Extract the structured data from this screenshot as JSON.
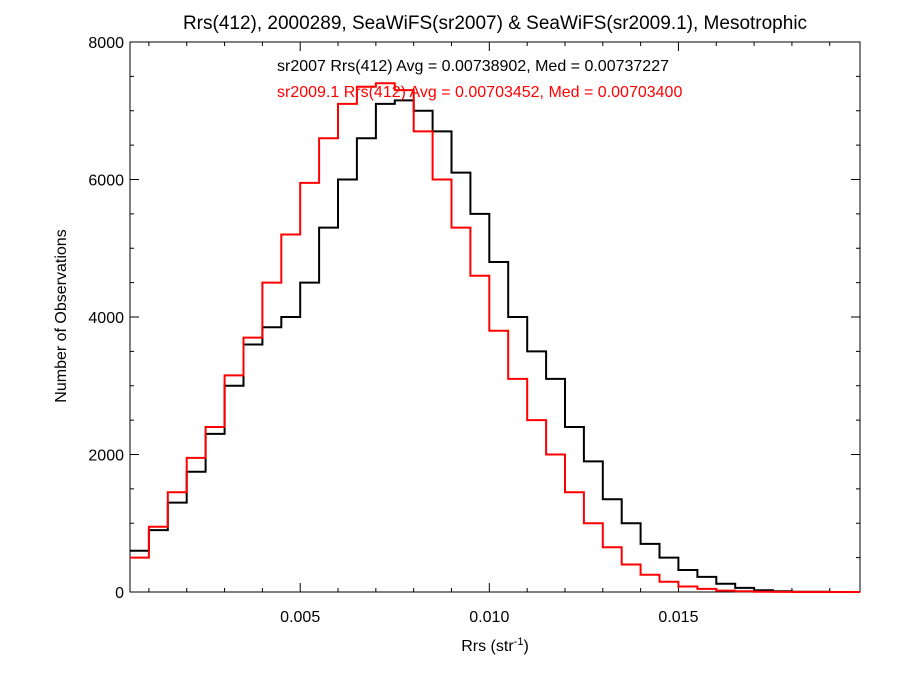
{
  "chart_data": {
    "type": "line",
    "title": "Rrs(412), 2000289, SeaWiFS(sr2007) & SeaWiFS(sr2009.1), Mesotrophic",
    "xlabel_main": "Rrs (str",
    "xlabel_sup": "-1",
    "xlabel_close": ")",
    "ylabel": "Number of Observations",
    "xlim": [
      0.0005,
      0.0198
    ],
    "ylim": [
      0,
      8000
    ],
    "x_ticks": [
      0.005,
      0.01,
      0.015
    ],
    "x_tick_labels": [
      "0.005",
      "0.010",
      "0.015"
    ],
    "y_ticks": [
      0,
      2000,
      4000,
      6000,
      8000
    ],
    "y_tick_labels": [
      "0",
      "2000",
      "4000",
      "6000",
      "8000"
    ],
    "annotations": [
      "sr2007 Rrs(412) Avg = 0.00738902, Med = 0.00737227",
      "sr2009.1 Rrs(412) Avg = 0.00703452, Med = 0.00703400"
    ],
    "colors": {
      "series_sr2007": "#000000",
      "series_sr2009": "#ff0000"
    },
    "series": [
      {
        "name": "sr2007",
        "color": "#000000",
        "x": [
          0.0005,
          0.001,
          0.0015,
          0.002,
          0.0025,
          0.003,
          0.0035,
          0.004,
          0.0045,
          0.005,
          0.0055,
          0.006,
          0.0065,
          0.007,
          0.0075,
          0.008,
          0.0085,
          0.009,
          0.0095,
          0.01,
          0.0105,
          0.011,
          0.0115,
          0.012,
          0.0125,
          0.013,
          0.0135,
          0.014,
          0.0145,
          0.015,
          0.0155,
          0.016,
          0.0165,
          0.017,
          0.0175,
          0.018,
          0.0185,
          0.019,
          0.0198
        ],
        "values": [
          600,
          900,
          1300,
          1750,
          2300,
          3000,
          3600,
          3850,
          4000,
          4500,
          5300,
          6000,
          6600,
          7100,
          7150,
          7000,
          6700,
          6100,
          5500,
          4800,
          4000,
          3500,
          3100,
          2400,
          1900,
          1350,
          1000,
          700,
          500,
          320,
          220,
          120,
          60,
          25,
          10,
          5,
          3,
          0,
          0
        ]
      },
      {
        "name": "sr2009.1",
        "color": "#ff0000",
        "x": [
          0.0005,
          0.001,
          0.0015,
          0.002,
          0.0025,
          0.003,
          0.0035,
          0.004,
          0.0045,
          0.005,
          0.0055,
          0.006,
          0.0065,
          0.007,
          0.0075,
          0.008,
          0.0085,
          0.009,
          0.0095,
          0.01,
          0.0105,
          0.011,
          0.0115,
          0.012,
          0.0125,
          0.013,
          0.0135,
          0.014,
          0.0145,
          0.015,
          0.0155,
          0.016,
          0.0165,
          0.017,
          0.0175,
          0.018,
          0.0185,
          0.019,
          0.0198
        ],
        "values": [
          500,
          950,
          1450,
          1950,
          2400,
          3150,
          3700,
          4500,
          5200,
          5950,
          6600,
          7100,
          7350,
          7400,
          7300,
          6700,
          6000,
          5300,
          4600,
          3800,
          3100,
          2500,
          2000,
          1450,
          1000,
          650,
          400,
          250,
          150,
          80,
          45,
          20,
          10,
          5,
          2,
          0,
          0,
          0,
          0
        ]
      }
    ]
  }
}
